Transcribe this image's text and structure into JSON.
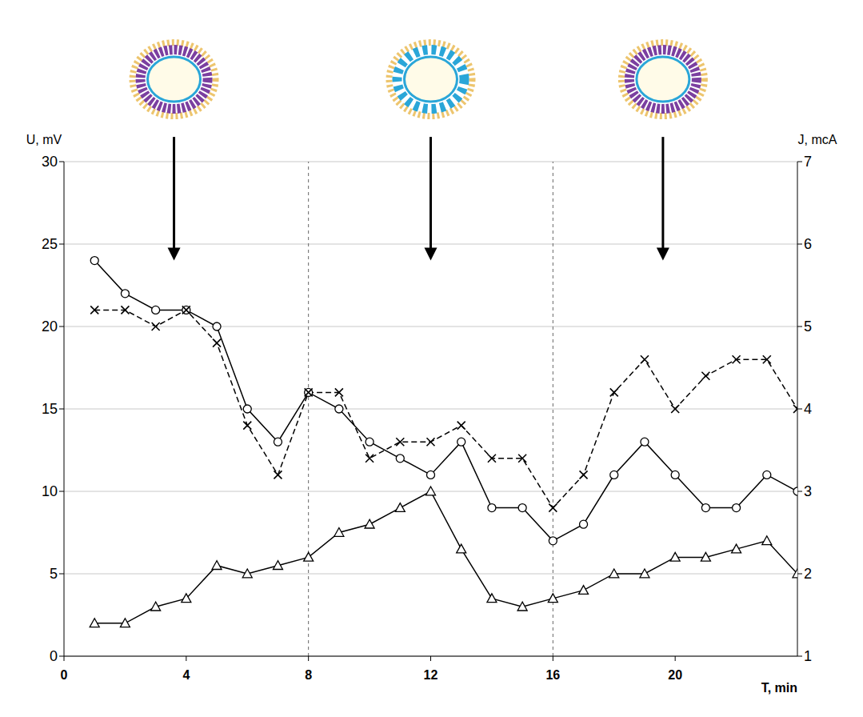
{
  "chart_data": {
    "type": "line",
    "x_label": "T, min",
    "y_label": "U, mV",
    "y2_label": "J, mcA",
    "xlim": [
      0,
      24
    ],
    "xticks": [
      0,
      4,
      8,
      12,
      16,
      20
    ],
    "ylim": [
      0,
      30
    ],
    "yticks": [
      0,
      5,
      10,
      15,
      20,
      25,
      30
    ],
    "y2lim": [
      1,
      7
    ],
    "y2ticks": [
      1,
      2,
      3,
      4,
      5,
      6,
      7
    ],
    "grid": true,
    "x": [
      1,
      2,
      3,
      4,
      5,
      6,
      7,
      8,
      9,
      10,
      11,
      12,
      13,
      14,
      15,
      16,
      17,
      18,
      19,
      20,
      21,
      22,
      23,
      24
    ],
    "series": [
      {
        "color": "#000000",
        "marker": "circle",
        "line_style": "solid",
        "values": [
          24,
          22,
          21,
          21,
          20,
          15,
          13,
          16,
          15,
          13,
          12,
          11,
          13,
          9,
          9,
          7,
          8,
          11,
          13,
          11,
          9,
          9,
          11,
          10
        ]
      },
      {
        "color": "#000000",
        "marker": "x",
        "line_style": "dashed",
        "axis": "y2",
        "values": [
          5.2,
          5.2,
          5,
          5.2,
          4.8,
          3.8,
          3.2,
          4.2,
          4.2,
          3.4,
          3.6,
          3.6,
          3.8,
          3.4,
          3.4,
          2.8,
          3.2,
          4.2,
          4.6,
          4,
          4.4,
          4.6,
          4.6,
          4
        ]
      },
      {
        "color": "#000000",
        "marker": "triangle",
        "line_style": "solid",
        "values": [
          2,
          2,
          3,
          3.5,
          5.5,
          5,
          5.5,
          6,
          7.5,
          8,
          9,
          10,
          6.5,
          3.5,
          3,
          3.5,
          4,
          5,
          5,
          6,
          6,
          6.5,
          7,
          5
        ]
      }
    ],
    "vlines": [
      8,
      16
    ],
    "arrows": [
      {
        "x": 3.6,
        "y_from": 31.5,
        "y_to": 24
      },
      {
        "x": 12,
        "y_from": 31.5,
        "y_to": 24
      },
      {
        "x": 19.6,
        "y_from": 31.5,
        "y_to": 24
      }
    ]
  }
}
